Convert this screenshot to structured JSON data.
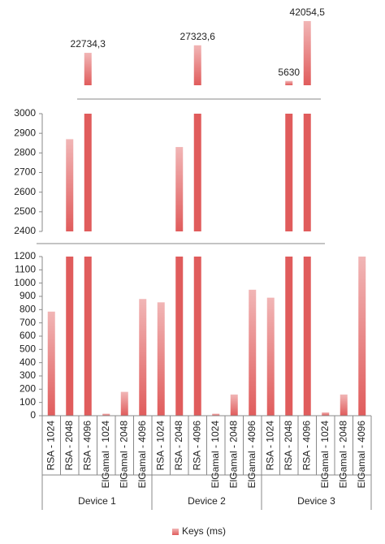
{
  "chart_data": {
    "type": "bar",
    "categories": [
      "RSA - 1024",
      "RSA - 2048",
      "RSA - 4096",
      "ElGamal - 1024",
      "ElGamal - 2048",
      "ElGamal - 4096",
      "RSA - 1024",
      "RSA - 2048",
      "RSA - 4096",
      "ElGamal - 1024",
      "ElGamal - 2048",
      "ElGamal - 4096",
      "RSA - 1024",
      "RSA - 2048",
      "RSA - 4096",
      "ElGamal - 1024",
      "ElGamal - 2048",
      "ElGamal - 4096"
    ],
    "groups": [
      "Device 1",
      "Device 2",
      "Device 3"
    ],
    "series": [
      {
        "name": "Keys (ms)",
        "color": "#e05c5c",
        "values": [
          785,
          2870,
          22734.3,
          15,
          180,
          880,
          855,
          2830,
          27323.6,
          15,
          160,
          950,
          890,
          5630,
          42054.5,
          25,
          160,
          1200
        ],
        "value_labels": [
          null,
          null,
          "22734,3",
          null,
          null,
          null,
          null,
          null,
          "27323,6",
          null,
          null,
          null,
          null,
          "5630",
          "42054,5",
          null,
          null,
          null
        ]
      }
    ],
    "panels": [
      {
        "ylim": [
          0,
          1200
        ],
        "yticks": [
          0,
          100,
          200,
          300,
          400,
          500,
          600,
          700,
          800,
          900,
          1000,
          1100,
          1200
        ]
      },
      {
        "ylim": [
          2400,
          3000
        ],
        "yticks": [
          2400,
          2500,
          2600,
          2700,
          2800,
          2900,
          3000
        ]
      },
      {
        "ylim": [
          3000,
          45000
        ]
      }
    ],
    "legend": "bottom"
  }
}
